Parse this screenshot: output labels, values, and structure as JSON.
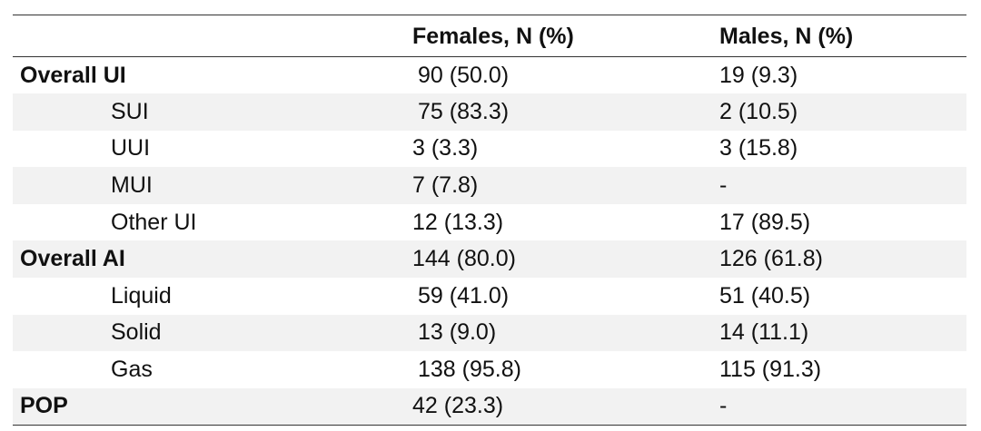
{
  "table": {
    "headers": [
      "",
      "Females, N (%)",
      "Males, N (%)"
    ],
    "rows": [
      {
        "label": "Overall UI",
        "females": "90 (50.0)",
        "males": "19 (9.3)"
      },
      {
        "label": "SUI",
        "females": "75 (83.3)",
        "males": "2 (10.5)"
      },
      {
        "label": "UUI",
        "females": "3 (3.3)",
        "males": "3 (15.8)"
      },
      {
        "label": "MUI",
        "females": "7 (7.8)",
        "males": "-"
      },
      {
        "label": "Other UI",
        "females": "12 (13.3)",
        "males": "17 (89.5)"
      },
      {
        "label": "Overall AI",
        "females": "144 (80.0)",
        "males": "126 (61.8)"
      },
      {
        "label": "Liquid",
        "females": "59 (41.0)",
        "males": "51 (40.5)"
      },
      {
        "label": "Solid",
        "females": "13 (9.0)",
        "males": "14 (11.1)"
      },
      {
        "label": "Gas",
        "females": "138 (95.8)",
        "males": "115 (91.3)"
      },
      {
        "label": "POP",
        "females": "42 (23.3)",
        "males": "-"
      }
    ]
  }
}
